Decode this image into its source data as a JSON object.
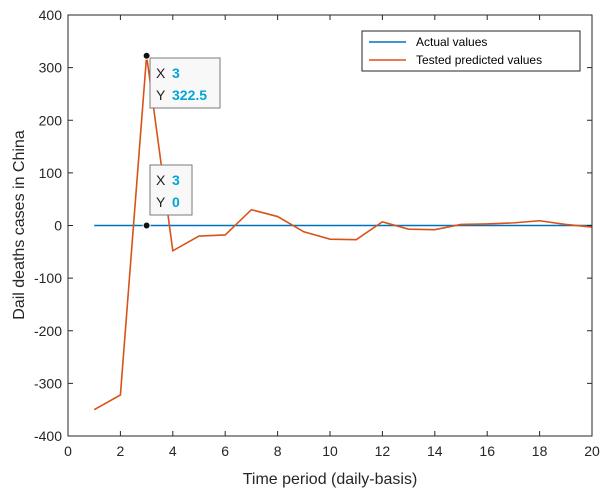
{
  "chart_data": {
    "type": "line",
    "title": "",
    "xlabel": "Time period (daily-basis)",
    "ylabel": "Dail deaths cases in China",
    "xlim": [
      0,
      20
    ],
    "ylim": [
      -400,
      400
    ],
    "xticks": [
      "0",
      "2",
      "4",
      "6",
      "8",
      "10",
      "12",
      "14",
      "16",
      "18",
      "20"
    ],
    "yticks": [
      "400",
      "300",
      "200",
      "100",
      "0",
      "-100",
      "-200",
      "-300",
      "-400"
    ],
    "grid": false,
    "legend_position": "top-right",
    "series": [
      {
        "name": "Actual values",
        "color": "#0072BD",
        "x": [
          1,
          20
        ],
        "y": [
          0,
          0
        ]
      },
      {
        "name": "Tested predicted values",
        "color": "#D95319",
        "x": [
          1,
          2,
          3,
          4,
          5,
          6,
          7,
          8,
          9,
          10,
          11,
          12,
          13,
          14,
          15,
          16,
          17,
          18,
          19,
          20
        ],
        "y": [
          -350,
          -322,
          322.5,
          -48,
          -20,
          -18,
          30,
          17,
          -12,
          -26,
          -27,
          7,
          -7,
          -8,
          2,
          3,
          5,
          9,
          2,
          -3
        ]
      }
    ],
    "datatips": [
      {
        "x_key": "X",
        "y_key": "Y",
        "x_value": "3",
        "y_value": "322.5",
        "point": [
          3,
          322.5
        ]
      },
      {
        "x_key": "X",
        "y_key": "Y",
        "x_value": "3",
        "y_value": "0",
        "point": [
          3,
          0
        ]
      }
    ],
    "datatip_value_color": "#00A6D6"
  }
}
